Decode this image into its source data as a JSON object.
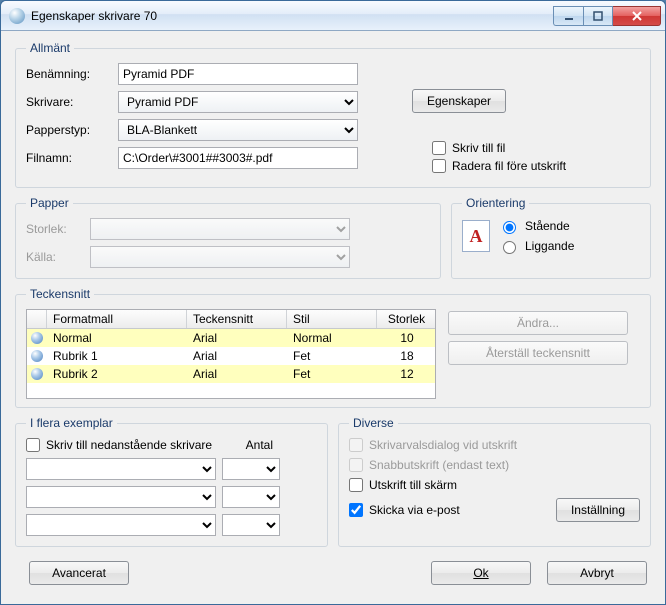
{
  "window": {
    "title": "Egenskaper skrivare 70"
  },
  "allmant": {
    "legend": "Allmänt",
    "benamning_label": "Benämning:",
    "benamning_value": "Pyramid PDF",
    "skrivare_label": "Skrivare:",
    "skrivare_value": "Pyramid PDF",
    "egenskaper_btn": "Egenskaper",
    "papperstyp_label": "Papperstyp:",
    "papperstyp_value": "BLA-Blankett",
    "filnamn_label": "Filnamn:",
    "filnamn_value": "C:\\Order\\#3001##3003#.pdf",
    "skriv_till_fil_label": "Skriv till fil",
    "radera_fil_label": "Radera fil före utskrift"
  },
  "papper": {
    "legend": "Papper",
    "storlek_label": "Storlek:",
    "kalla_label": "Källa:"
  },
  "orientering": {
    "legend": "Orientering",
    "staende_label": "Stående",
    "liggande_label": "Liggande",
    "icon_letter": "A"
  },
  "teckensnitt": {
    "legend": "Teckensnitt",
    "headers": {
      "formatmall": "Formatmall",
      "teckensnitt": "Teckensnitt",
      "stil": "Stil",
      "storlek": "Storlek"
    },
    "rows": [
      {
        "name": "Normal",
        "font": "Arial",
        "stil": "Normal",
        "size": "10",
        "highlight": true
      },
      {
        "name": "Rubrik 1",
        "font": "Arial",
        "stil": "Fet",
        "size": "18",
        "highlight": false
      },
      {
        "name": "Rubrik 2",
        "font": "Arial",
        "stil": "Fet",
        "size": "12",
        "highlight": true
      }
    ],
    "andra_btn": "Ändra...",
    "aterstall_btn": "Återställ teckensnitt"
  },
  "exemplar": {
    "legend": "I flera exemplar",
    "skriv_till_label": "Skriv till nedanstående skrivare",
    "antal_label": "Antal"
  },
  "diverse": {
    "legend": "Diverse",
    "skrivarvalsdialog_label": "Skrivarvalsdialog vid utskrift",
    "snabbutskrift_label": "Snabbutskrift (endast text)",
    "utskrift_till_skarm_label": "Utskrift till skärm",
    "skicka_epost_label": "Skicka via e-post",
    "installning_btn": "Inställning"
  },
  "footer": {
    "avancerat_btn": "Avancerat",
    "ok_btn": "Ok",
    "avbryt_btn": "Avbryt"
  }
}
